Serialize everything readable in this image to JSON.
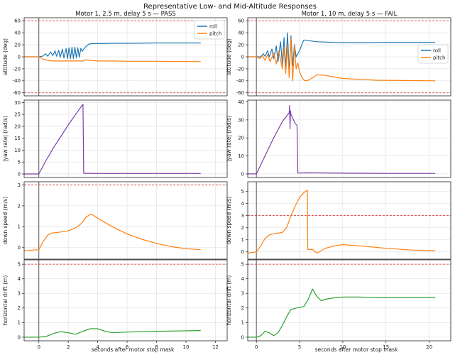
{
  "figure": {
    "suptitle": "Representative Low- and Mid-Altitude Responses",
    "xlabel": "seconds after motor stop mask",
    "colors": {
      "roll": "#1f77b4",
      "pitch": "#ff7f0e",
      "yaw": "#7b3fa8",
      "speed": "#ff7f0e",
      "drift": "#2ca02c",
      "limit": "#d62728",
      "marker": "#555555",
      "grid": "#dddddd"
    }
  },
  "chart_data": [
    {
      "type": "line",
      "panel": "left-attitude",
      "title": "Motor 1, 2.5 m, delay 5 s — PASS",
      "ylabel": "attitude (deg)",
      "xlim": [
        -1,
        12.8
      ],
      "ylim": [
        -65,
        65
      ],
      "xticks": [],
      "yticks": [
        -60,
        -40,
        -20,
        0,
        20,
        40,
        60
      ],
      "grid": true,
      "legend": "top-right",
      "limits": [
        60,
        -60
      ],
      "series": [
        {
          "name": "roll",
          "color": "#1f77b4",
          "x": [
            -1,
            0,
            0.25,
            0.45,
            0.6,
            0.8,
            0.95,
            1.1,
            1.2,
            1.35,
            1.45,
            1.6,
            1.7,
            1.85,
            1.95,
            2.05,
            2.15,
            2.25,
            2.35,
            2.45,
            2.55,
            2.65,
            2.75,
            2.85,
            2.95,
            3.05,
            3.2,
            3.4,
            3.6,
            4,
            5,
            6,
            8,
            11
          ],
          "y": [
            0,
            0,
            1,
            5,
            1,
            8,
            2,
            10,
            1,
            11,
            -1,
            13,
            -2,
            14,
            -3,
            15,
            -3,
            16,
            -3,
            16,
            -2,
            15,
            -1,
            14,
            9,
            13,
            17,
            21,
            22,
            22,
            22.5,
            22.5,
            23,
            23
          ]
        },
        {
          "name": "pitch",
          "color": "#ff7f0e",
          "x": [
            -1,
            0,
            0.3,
            0.6,
            1,
            1.5,
            2,
            2.5,
            3,
            3.2,
            3.5,
            4,
            5,
            6,
            8,
            11
          ],
          "y": [
            0,
            0,
            -4,
            -6,
            -7,
            -7,
            -7,
            -7,
            -7,
            -5,
            -6,
            -7,
            -7,
            -7.5,
            -7.5,
            -8
          ]
        }
      ]
    },
    {
      "type": "line",
      "panel": "right-attitude",
      "title": "Motor 1, 10 m, delay 5 s — FAIL",
      "ylabel": "attitude (deg)",
      "xlim": [
        -1,
        22.5
      ],
      "ylim": [
        -65,
        65
      ],
      "xticks": [],
      "yticks": [
        -60,
        -40,
        -20,
        0,
        20,
        40,
        60
      ],
      "grid": true,
      "legend": "center-right",
      "limits": [
        60,
        -60
      ],
      "series": [
        {
          "name": "roll",
          "color": "#1f77b4",
          "x": [
            -1,
            0,
            0.5,
            0.8,
            1,
            1.3,
            1.5,
            1.8,
            2,
            2.3,
            2.5,
            2.8,
            3,
            3.2,
            3.4,
            3.6,
            3.8,
            4,
            4.2,
            4.4,
            4.6,
            5,
            5.3,
            5.5,
            6,
            7,
            9,
            12,
            15,
            20.7
          ],
          "y": [
            0,
            0,
            0,
            5,
            1,
            10,
            0,
            13,
            -3,
            18,
            -8,
            25,
            -12,
            32,
            -20,
            40,
            -25,
            35,
            -15,
            20,
            0,
            10,
            22,
            28,
            27,
            25,
            24,
            23.5,
            24,
            24
          ]
        },
        {
          "name": "pitch",
          "color": "#ff7f0e",
          "x": [
            -1,
            0,
            0.4,
            0.7,
            1,
            1.3,
            1.6,
            2,
            2.3,
            2.6,
            3,
            3.2,
            3.4,
            3.6,
            3.8,
            4,
            4.2,
            4.4,
            4.6,
            4.8,
            5,
            5.3,
            5.6,
            6,
            6.5,
            7,
            8,
            10,
            14,
            20.7
          ],
          "y": [
            0,
            0,
            -3,
            2,
            -6,
            4,
            -8,
            6,
            -12,
            10,
            -20,
            15,
            -28,
            20,
            -35,
            30,
            -40,
            18,
            -20,
            -10,
            -25,
            -35,
            -40,
            -39,
            -35,
            -30,
            -31,
            -36,
            -39,
            -40
          ]
        }
      ]
    },
    {
      "type": "line",
      "panel": "left-yaw",
      "ylabel": "|yaw rate| (rad/s)",
      "xlim": [
        -1,
        12.8
      ],
      "ylim": [
        -1.5,
        31
      ],
      "xticks": [],
      "yticks": [
        0,
        5,
        10,
        15,
        20,
        25,
        30
      ],
      "grid": true,
      "series": [
        {
          "name": "",
          "color": "#7b3fa8",
          "x": [
            -1,
            0,
            0.5,
            1,
            1.5,
            2,
            2.5,
            3,
            3.05,
            4,
            6,
            8,
            11
          ],
          "y": [
            0,
            0,
            5.8,
            11,
            15.8,
            20.6,
            25,
            29.3,
            0.3,
            0.2,
            0.2,
            0.2,
            0.2
          ]
        }
      ]
    },
    {
      "type": "line",
      "panel": "right-yaw",
      "ylabel": "|yaw rate| (rad/s)",
      "xlim": [
        -1,
        22.5
      ],
      "ylim": [
        -2,
        41
      ],
      "xticks": [],
      "yticks": [
        0,
        10,
        20,
        30,
        40
      ],
      "grid": true,
      "series": [
        {
          "name": "",
          "color": "#7b3fa8",
          "x": [
            -1,
            0,
            1,
            2,
            3,
            3.8,
            3.85,
            3.9,
            3.95,
            4.0,
            4.5,
            4.7,
            4.8,
            5,
            6,
            10,
            15,
            20.7
          ],
          "y": [
            0,
            0,
            10,
            20,
            29,
            34,
            38,
            25,
            35,
            33,
            28,
            27,
            0.5,
            0.5,
            0.6,
            0.4,
            0.3,
            0.3
          ]
        }
      ]
    },
    {
      "type": "line",
      "panel": "left-speed",
      "ylabel": "down speed (m/s)",
      "xlim": [
        -1,
        12.8
      ],
      "ylim": [
        -0.55,
        3.15
      ],
      "xticks": [],
      "yticks": [
        0,
        1,
        2,
        3
      ],
      "grid": true,
      "limits": [
        3
      ],
      "series": [
        {
          "name": "",
          "color": "#ff7f0e",
          "x": [
            -1,
            0,
            0.3,
            0.6,
            0.9,
            1.2,
            1.5,
            2,
            2.5,
            2.8,
            3,
            3.2,
            3.5,
            3.7,
            4,
            5,
            6,
            7,
            8,
            9,
            10,
            11
          ],
          "y": [
            -0.15,
            -0.1,
            0.3,
            0.6,
            0.7,
            0.72,
            0.75,
            0.8,
            0.95,
            1.1,
            1.25,
            1.45,
            1.6,
            1.55,
            1.4,
            1.0,
            0.65,
            0.4,
            0.2,
            0.05,
            -0.05,
            -0.1
          ]
        }
      ]
    },
    {
      "type": "line",
      "panel": "right-speed",
      "ylabel": "down speed (m/s)",
      "xlim": [
        -1,
        22.5
      ],
      "ylim": [
        -0.6,
        5.8
      ],
      "xticks": [],
      "yticks": [
        0,
        1,
        2,
        3,
        4,
        5
      ],
      "grid": true,
      "limits": [
        3
      ],
      "series": [
        {
          "name": "",
          "color": "#ff7f0e",
          "x": [
            -1,
            0,
            0.5,
            1,
            1.5,
            2,
            3,
            3.5,
            4,
            4.5,
            5,
            5.5,
            5.9,
            5.95,
            6.5,
            7,
            7.5,
            8,
            9,
            10,
            12,
            15,
            18,
            20.7
          ],
          "y": [
            -0.1,
            0,
            0.5,
            1.1,
            1.4,
            1.5,
            1.6,
            2.0,
            3.0,
            3.8,
            4.5,
            4.9,
            5.1,
            0.2,
            0.2,
            -0.1,
            0.1,
            0.3,
            0.5,
            0.6,
            0.5,
            0.3,
            0.15,
            0.1
          ]
        }
      ]
    },
    {
      "type": "line",
      "panel": "left-drift",
      "ylabel": "horizontal drift (m)",
      "xlim": [
        -1,
        12.8
      ],
      "ylim": [
        -0.25,
        5.3
      ],
      "xticks": [
        0,
        2,
        4,
        6,
        8,
        10,
        12
      ],
      "yticks": [
        0,
        1,
        2,
        3,
        4,
        5
      ],
      "grid": true,
      "limits": [
        5
      ],
      "series": [
        {
          "name": "",
          "color": "#2ca02c",
          "x": [
            -1,
            0,
            0.5,
            1,
            1.5,
            2,
            2.5,
            3,
            3.5,
            4,
            4.5,
            5,
            6,
            8,
            11
          ],
          "y": [
            0,
            0,
            0.05,
            0.25,
            0.38,
            0.3,
            0.2,
            0.4,
            0.58,
            0.58,
            0.4,
            0.3,
            0.35,
            0.4,
            0.45
          ]
        }
      ]
    },
    {
      "type": "line",
      "panel": "right-drift",
      "ylabel": "horizontal drift (m)",
      "xlim": [
        -1,
        22.5
      ],
      "ylim": [
        -0.25,
        5.3
      ],
      "xticks": [
        0,
        5,
        10,
        15,
        20
      ],
      "yticks": [
        0,
        1,
        2,
        3,
        4,
        5
      ],
      "grid": true,
      "limits": [
        5
      ],
      "series": [
        {
          "name": "",
          "color": "#2ca02c",
          "x": [
            -1,
            0,
            0.5,
            1,
            1.5,
            2,
            2.5,
            3,
            3.5,
            4,
            5,
            5.5,
            6,
            6.5,
            7,
            7.5,
            8,
            9,
            10,
            12,
            15,
            18,
            20.7
          ],
          "y": [
            0,
            0,
            0.1,
            0.4,
            0.3,
            0.1,
            0.3,
            0.8,
            1.4,
            1.9,
            2.05,
            2.1,
            2.6,
            3.3,
            2.8,
            2.5,
            2.6,
            2.7,
            2.75,
            2.75,
            2.7,
            2.72,
            2.72
          ]
        }
      ]
    }
  ]
}
